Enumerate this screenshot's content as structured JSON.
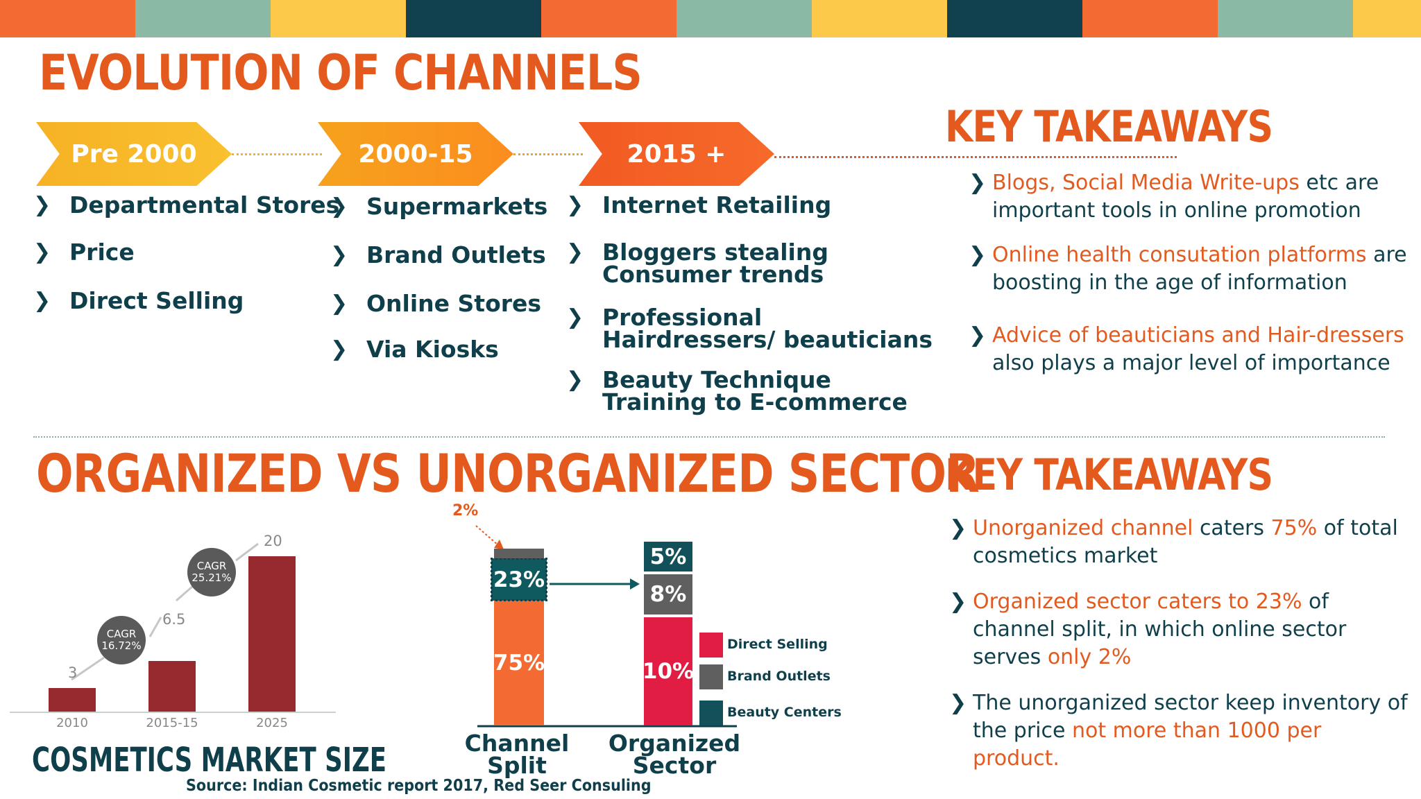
{
  "colors": {
    "orange": "#f36b32",
    "sage": "#8ab9a6",
    "yellow": "#fdc94a",
    "navy": "#11404e",
    "accent": "#e45a1e",
    "maroon": "#962a2f",
    "teal": "#0e5a5e",
    "crimson": "#e21d43",
    "gray": "#5f5f5f"
  },
  "top_bar": [
    "orange",
    "sage",
    "yellow",
    "navy",
    "orange",
    "sage",
    "yellow",
    "navy",
    "orange",
    "sage",
    "yellow"
  ],
  "evolution": {
    "title": "EVOLUTION OF CHANNELS",
    "columns": [
      {
        "label": "Pre 2000",
        "items": [
          "Departmental Stores",
          "Price",
          "Direct Selling"
        ]
      },
      {
        "label": "2000-15",
        "items": [
          "Supermarkets",
          "Brand Outlets",
          "Online Stores",
          "Via Kiosks"
        ]
      },
      {
        "label": "2015 +",
        "items": [
          "Internet Retailing",
          "Bloggers stealing Consumer trends",
          "Professional Hairdressers/ beauticians",
          "Beauty Technique Training to E-commerce"
        ]
      }
    ]
  },
  "takeaways_top": {
    "title": "KEY TAKEAWAYS",
    "items": [
      {
        "highlight": "Blogs, Social Media Write-ups",
        "rest": " etc  are important tools in online promotion"
      },
      {
        "highlight": "Online health consutation platforms",
        "rest": " are boosting in the age of information"
      },
      {
        "highlight": "Advice of beauticians and Hair-dressers",
        "rest": " also plays a major level of importance"
      }
    ]
  },
  "sector": {
    "title": "ORGANIZED VS UNORGANIZED SECTOR"
  },
  "market_size": {
    "title": "COSMETICS MARKET SIZE",
    "source": "Source: Indian Cosmetic report 2017, Red Seer Consuling",
    "cagr_1": {
      "label": "CAGR",
      "value": "16.72%"
    },
    "cagr_2": {
      "label": "CAGR",
      "value": "25.21%"
    }
  },
  "chart_data": [
    {
      "type": "bar",
      "categories": [
        "2010",
        "2015-15",
        "2025"
      ],
      "values": [
        3,
        6.5,
        20
      ],
      "value_labels": [
        "3",
        "6.5",
        "20"
      ],
      "title": "COSMETICS MARKET SIZE",
      "ylim": [
        0,
        22
      ]
    },
    {
      "type": "bar",
      "stacked": true,
      "categories": [
        "Channel Split",
        "Organized Sector"
      ],
      "series": [
        {
          "name": "",
          "values": [
            75,
            null
          ],
          "label": "75%",
          "color": "orange"
        },
        {
          "name": "",
          "values": [
            23,
            null
          ],
          "label": "23%",
          "color": "teal"
        },
        {
          "name": "",
          "values": [
            2,
            null
          ],
          "label": "2%",
          "color": "gray"
        },
        {
          "name": "Direct Selling",
          "values": [
            null,
            10
          ],
          "label": "10%",
          "color": "crimson"
        },
        {
          "name": "Brand Outlets",
          "values": [
            null,
            8
          ],
          "label": "8%",
          "color": "gray"
        },
        {
          "name": "Beauty Centers",
          "values": [
            null,
            5
          ],
          "label": "5%",
          "color": "teal"
        }
      ],
      "legend": "right"
    }
  ],
  "takeaways_bottom": {
    "title": "KEY TAKEAWAYS",
    "items": [
      {
        "parts": [
          {
            "t": "Unorganized channel",
            "h": true
          },
          {
            "t": " caters ",
            "h": false
          },
          {
            "t": "75%",
            "h": true
          },
          {
            "t": " of total cosmetics market",
            "h": false
          }
        ]
      },
      {
        "parts": [
          {
            "t": "Organized sector caters to 23%",
            "h": true
          },
          {
            "t": " of channel split, in which online sector serves ",
            "h": false
          },
          {
            "t": "only 2%",
            "h": true
          }
        ]
      },
      {
        "parts": [
          {
            "t": "The unorganized sector keep inventory of the price ",
            "h": false
          },
          {
            "t": "not more than 1000 per product.",
            "h": true
          }
        ]
      }
    ]
  }
}
